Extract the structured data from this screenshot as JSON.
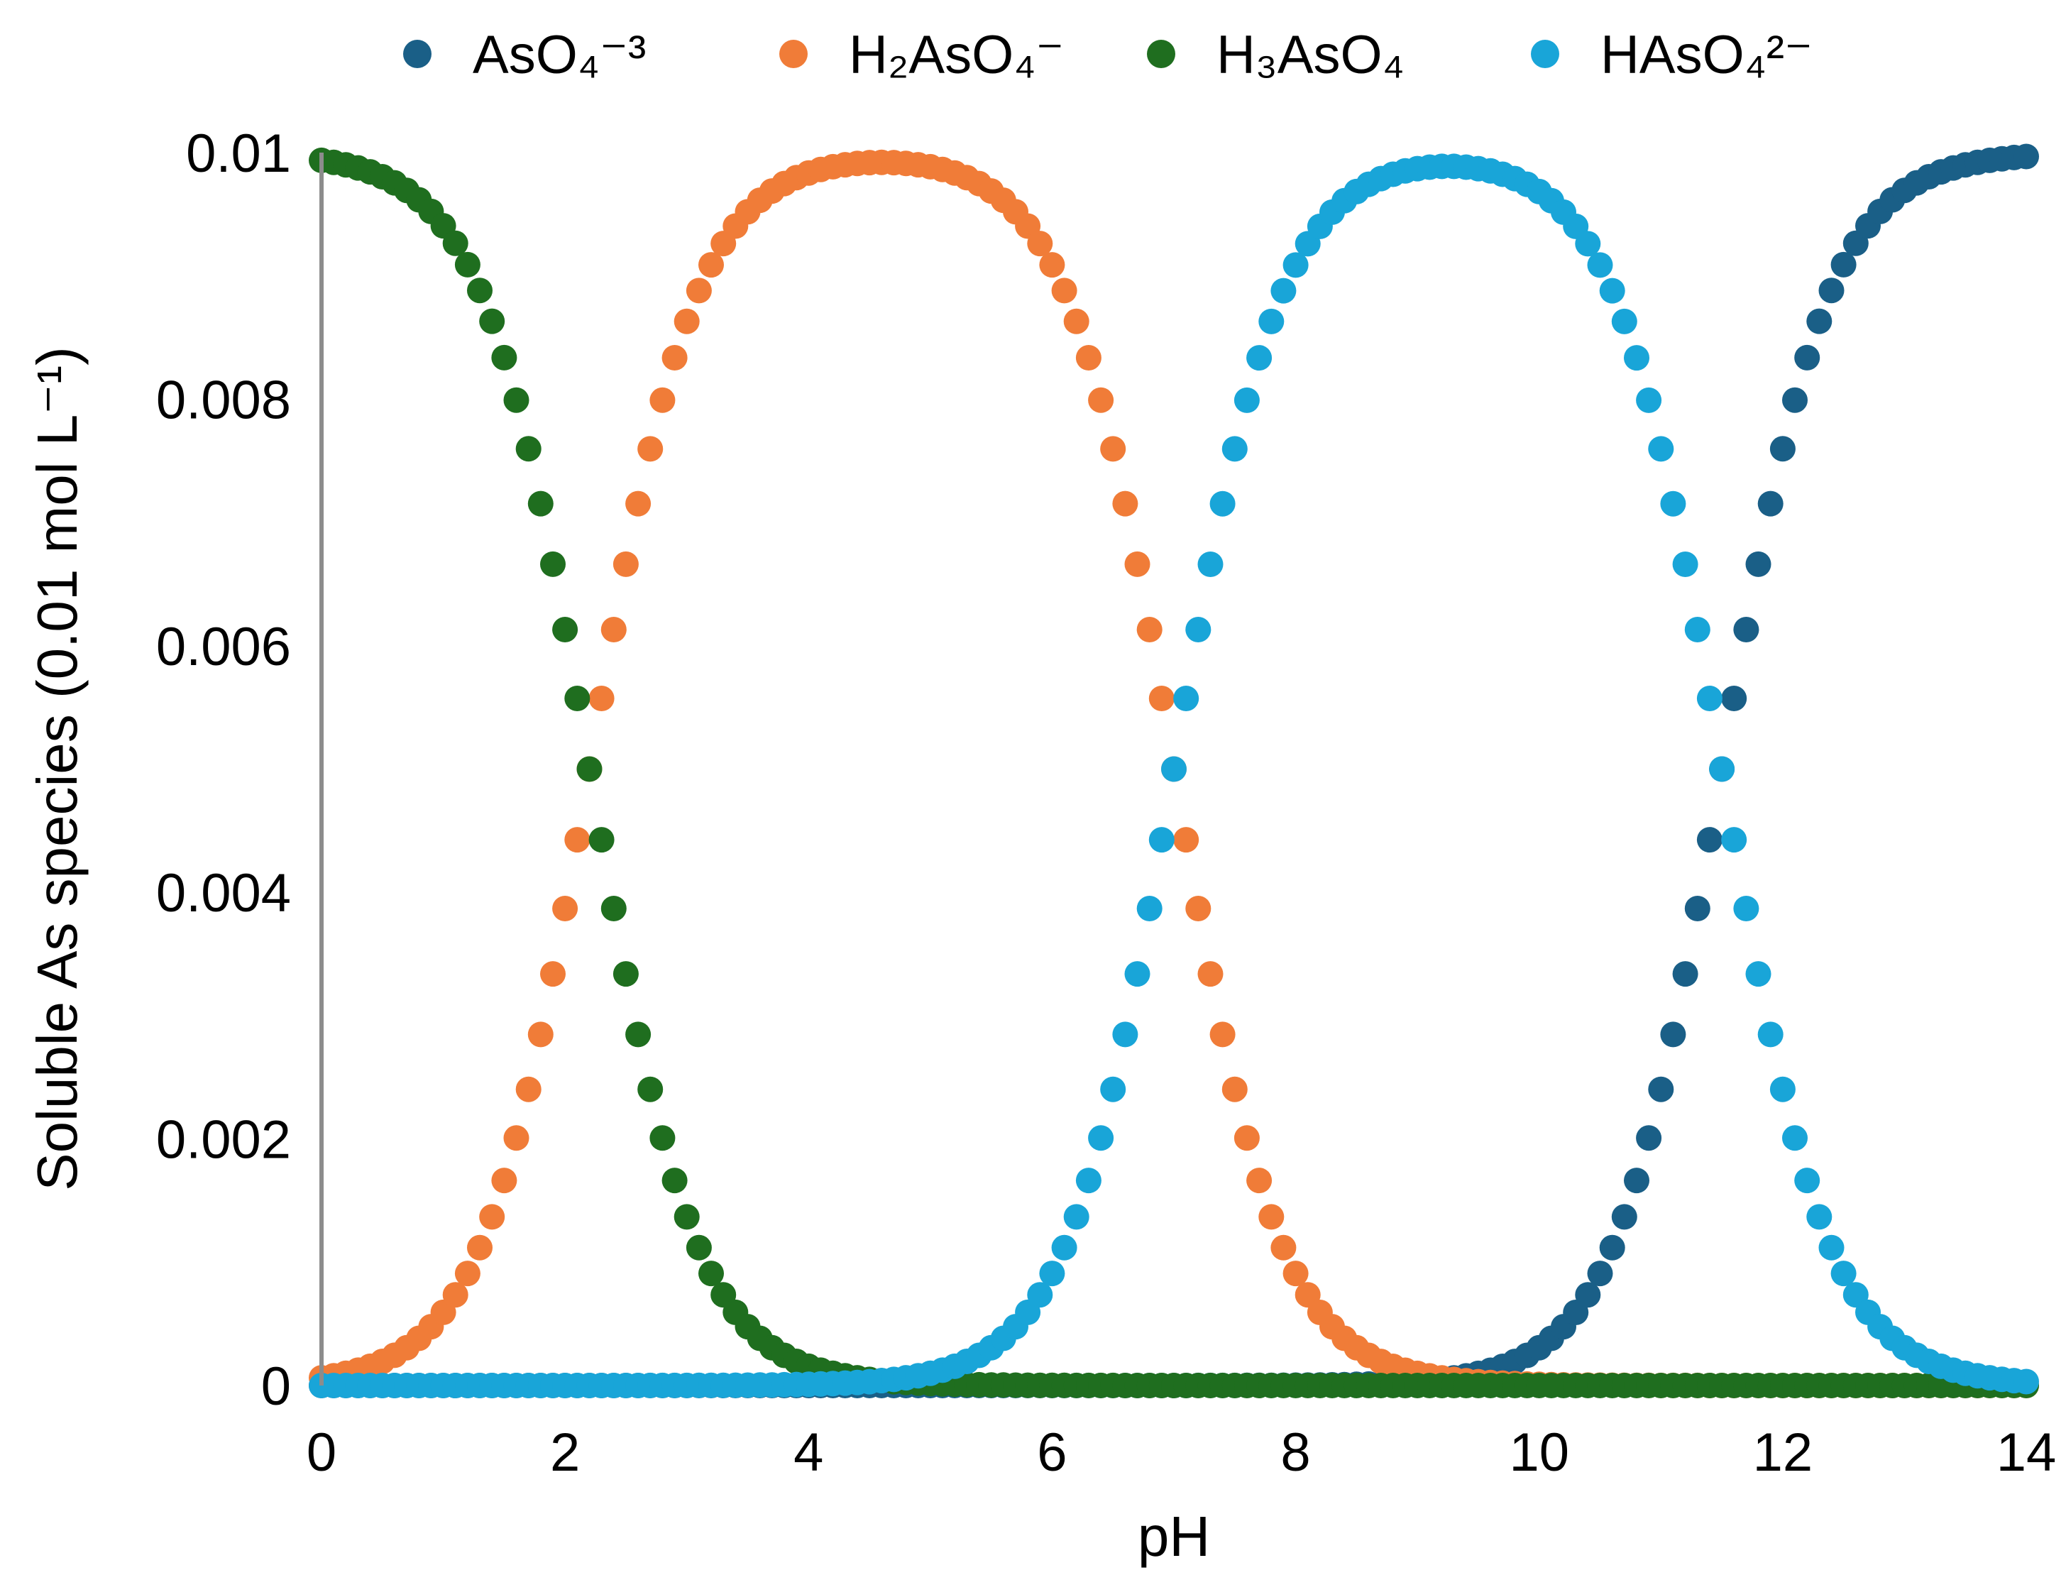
{
  "chart_data": {
    "type": "scatter",
    "title": "",
    "xlabel": "pH",
    "ylabel": "Soluble As species (0.01 mol L⁻¹)",
    "xlim": [
      0,
      14
    ],
    "ylim": [
      0,
      0.01
    ],
    "x_ticks": [
      "0",
      "2",
      "4",
      "6",
      "8",
      "10",
      "12",
      "14"
    ],
    "y_ticks": [
      "0",
      "0.002",
      "0.004",
      "0.006",
      "0.008",
      "0.01"
    ],
    "grid": false,
    "legend_position": "top",
    "total_concentration": 0.01,
    "pH_step": 0.1,
    "pKa": [
      2.2,
      7.0,
      11.5
    ],
    "series": [
      {
        "name": "AsO₄⁻³",
        "species": "AsO4",
        "color": "#1a5f87"
      },
      {
        "name": "H₂AsO₄⁻",
        "species": "H2AsO4",
        "color": "#f07c38"
      },
      {
        "name": "H₃AsO₄",
        "species": "H3AsO4",
        "color": "#1f6e1f"
      },
      {
        "name": "HAsO₄²⁻",
        "species": "HAsO4",
        "color": "#19a5d8"
      }
    ]
  }
}
